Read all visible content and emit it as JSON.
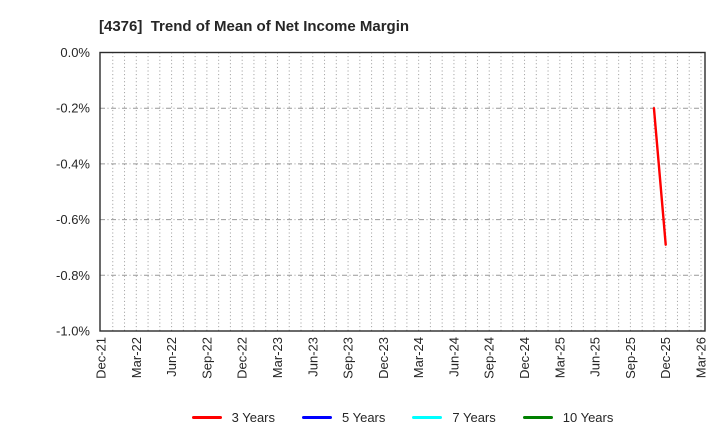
{
  "chart_data": {
    "type": "line",
    "title": "[4376]  Trend of Mean of Net Income Margin",
    "x_axis": {
      "tick_labels": [
        "Dec-21",
        "Mar-22",
        "Jun-22",
        "Sep-22",
        "Dec-22",
        "Mar-23",
        "Jun-23",
        "Sep-23",
        "Dec-23",
        "Mar-24",
        "Jun-24",
        "Sep-24",
        "Dec-24",
        "Mar-25",
        "Jun-25",
        "Sep-25",
        "Dec-25",
        "Mar-26"
      ],
      "minor_grid": "monthly-dotted"
    },
    "y_axis": {
      "tick_labels": [
        "0.0%",
        "-0.2%",
        "-0.4%",
        "-0.6%",
        "-0.8%",
        "-1.0%"
      ],
      "tick_values": [
        0.0,
        -0.2,
        -0.4,
        -0.6,
        -0.8,
        -1.0
      ],
      "ylim": [
        -1.0,
        0.0
      ],
      "unit": "%",
      "major_grid": "dashed"
    },
    "grid": true,
    "legend_position": "bottom",
    "series": [
      {
        "name": "3 Years",
        "color": "#ff0000",
        "points": [
          [
            "Nov-25",
            -0.2
          ],
          [
            "Dec-25",
            -0.69
          ]
        ]
      },
      {
        "name": "5 Years",
        "color": "#0000ff",
        "points": []
      },
      {
        "name": "7 Years",
        "color": "#00ffff",
        "points": []
      },
      {
        "name": "10 Years",
        "color": "#008000",
        "points": []
      }
    ],
    "colors": {
      "axis_border": "#2b2b2b",
      "grid": "#999999",
      "text": "#262626",
      "background": "#ffffff"
    }
  }
}
